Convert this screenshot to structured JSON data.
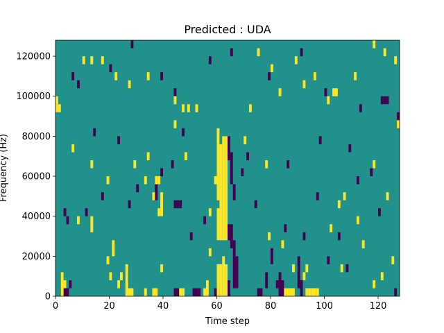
{
  "chart_data": {
    "type": "heatmap",
    "title": "Predicted : UDA",
    "xlabel": "Time step",
    "ylabel": "Frequency (Hz)",
    "xlim": [
      0,
      128
    ],
    "ylim": [
      0,
      128000
    ],
    "x_ticks": [
      0,
      20,
      40,
      60,
      80,
      100,
      120
    ],
    "y_ticks": [
      0,
      20000,
      40000,
      60000,
      80000,
      100000,
      120000
    ],
    "x_tick_labels": [
      "0",
      "20",
      "40",
      "60",
      "80",
      "100",
      "120"
    ],
    "y_tick_labels": [
      "0",
      "20000",
      "40000",
      "60000",
      "80000",
      "100000",
      "120000"
    ],
    "colormap": "viridis",
    "colors": {
      "low": "#440154",
      "mid": "#21918c",
      "high": "#fde725"
    },
    "background_value": "mid",
    "cell_width_steps": 1,
    "cell_height_hz": 4000,
    "yellow_runs": [
      [
        2,
        0,
        12000
      ],
      [
        3,
        4000,
        8000
      ],
      [
        8,
        36000,
        40000
      ],
      [
        13,
        32000,
        40000
      ],
      [
        24,
        8000,
        12000
      ],
      [
        26,
        0,
        16000
      ],
      [
        27,
        0,
        4000
      ],
      [
        28,
        0,
        4000
      ],
      [
        33,
        0,
        4000
      ],
      [
        36,
        0,
        4000
      ],
      [
        37,
        0,
        4000
      ],
      [
        46,
        0,
        4000
      ],
      [
        47,
        0,
        4000
      ],
      [
        55,
        0,
        4000
      ],
      [
        56,
        0,
        8000
      ],
      [
        34,
        68000,
        72000
      ],
      [
        38,
        40000,
        44000
      ],
      [
        39,
        44000,
        52000
      ],
      [
        60,
        0,
        16000
      ],
      [
        61,
        0,
        16000
      ],
      [
        62,
        0,
        20000
      ],
      [
        63,
        0,
        16000
      ],
      [
        60,
        28000,
        44000
      ],
      [
        61,
        28000,
        76000
      ],
      [
        62,
        28000,
        80000
      ],
      [
        63,
        28000,
        80000
      ],
      [
        60,
        48000,
        76000
      ],
      [
        59,
        56000,
        60000
      ],
      [
        60,
        76000,
        84000
      ],
      [
        93,
        0,
        4000
      ],
      [
        94,
        0,
        4000
      ],
      [
        95,
        0,
        4000
      ],
      [
        96,
        0,
        4000
      ],
      [
        97,
        0,
        4000
      ],
      [
        85,
        0,
        4000
      ],
      [
        86,
        0,
        4000
      ],
      [
        87,
        0,
        4000
      ],
      [
        88,
        0,
        4000
      ],
      [
        39,
        40000,
        48000
      ],
      [
        36,
        48000,
        52000
      ],
      [
        37,
        56000,
        60000
      ],
      [
        38,
        56000,
        60000
      ],
      [
        23,
        4000,
        8000
      ],
      [
        21,
        20000,
        28000
      ],
      [
        19,
        16000,
        20000
      ],
      [
        20,
        8000,
        12000
      ],
      [
        0,
        96000,
        100000
      ],
      [
        1,
        92000,
        96000
      ],
      [
        0,
        92000,
        96000
      ],
      [
        10,
        116000,
        120000
      ],
      [
        13,
        116000,
        120000
      ],
      [
        17,
        116000,
        120000
      ],
      [
        22,
        108000,
        112000
      ],
      [
        27,
        104000,
        108000
      ],
      [
        34,
        108000,
        112000
      ],
      [
        44,
        96000,
        100000
      ],
      [
        47,
        92000,
        96000
      ],
      [
        49,
        92000,
        96000
      ],
      [
        52,
        92000,
        96000
      ],
      [
        72,
        92000,
        96000
      ],
      [
        75,
        120000,
        124000
      ],
      [
        80,
        112000,
        116000
      ],
      [
        83,
        100000,
        104000
      ],
      [
        89,
        116000,
        120000
      ],
      [
        92,
        104000,
        108000
      ],
      [
        96,
        108000,
        112000
      ],
      [
        101,
        96000,
        100000
      ],
      [
        103,
        100000,
        104000
      ],
      [
        104,
        100000,
        104000
      ],
      [
        111,
        108000,
        112000
      ],
      [
        118,
        124000,
        128000
      ],
      [
        122,
        120000,
        124000
      ],
      [
        126,
        116000,
        120000
      ],
      [
        105,
        44000,
        48000
      ],
      [
        107,
        48000,
        52000
      ],
      [
        112,
        36000,
        40000
      ],
      [
        118,
        64000,
        68000
      ],
      [
        123,
        48000,
        52000
      ],
      [
        6,
        72000,
        76000
      ],
      [
        13,
        64000,
        68000
      ],
      [
        19,
        56000,
        60000
      ],
      [
        29,
        64000,
        68000
      ],
      [
        33,
        56000,
        60000
      ],
      [
        44,
        84000,
        88000
      ],
      [
        48,
        68000,
        72000
      ],
      [
        57,
        40000,
        44000
      ],
      [
        57,
        20000,
        24000
      ],
      [
        39,
        12000,
        16000
      ],
      [
        70,
        76000,
        80000
      ],
      [
        78,
        64000,
        68000
      ],
      [
        79,
        28000,
        32000
      ],
      [
        84,
        24000,
        28000
      ],
      [
        88,
        12000,
        16000
      ],
      [
        92,
        8000,
        12000
      ],
      [
        93,
        12000,
        16000
      ],
      [
        102,
        32000,
        36000
      ],
      [
        106,
        12000,
        16000
      ],
      [
        114,
        24000,
        28000
      ],
      [
        118,
        4000,
        8000
      ],
      [
        121,
        8000,
        12000
      ],
      [
        125,
        16000,
        20000
      ],
      [
        127,
        84000,
        88000
      ]
    ],
    "purple_runs": [
      [
        2,
        0,
        4000
      ],
      [
        3,
        0,
        4000
      ],
      [
        4,
        0,
        4000
      ],
      [
        5,
        4000,
        8000
      ],
      [
        4,
        36000,
        40000
      ],
      [
        3,
        40000,
        44000
      ],
      [
        44,
        0,
        4000
      ],
      [
        45,
        0,
        4000
      ],
      [
        51,
        0,
        4000
      ],
      [
        52,
        0,
        4000
      ],
      [
        53,
        0,
        4000
      ],
      [
        59,
        0,
        4000
      ],
      [
        64,
        0,
        8000
      ],
      [
        66,
        4000,
        20000
      ],
      [
        67,
        4000,
        20000
      ],
      [
        64,
        28000,
        36000
      ],
      [
        65,
        24000,
        36000
      ],
      [
        66,
        20000,
        28000
      ],
      [
        64,
        68000,
        80000
      ],
      [
        65,
        56000,
        72000
      ],
      [
        66,
        48000,
        56000
      ],
      [
        82,
        4000,
        8000
      ],
      [
        83,
        0,
        12000
      ],
      [
        84,
        0,
        8000
      ],
      [
        90,
        4000,
        20000
      ],
      [
        91,
        0,
        8000
      ],
      [
        75,
        0,
        4000
      ],
      [
        76,
        0,
        4000
      ],
      [
        78,
        4000,
        12000
      ],
      [
        80,
        16000,
        24000
      ],
      [
        37,
        48000,
        56000
      ],
      [
        44,
        44000,
        48000
      ],
      [
        45,
        44000,
        48000
      ],
      [
        46,
        44000,
        48000
      ],
      [
        39,
        60000,
        64000
      ],
      [
        43,
        64000,
        68000
      ],
      [
        30,
        52000,
        56000
      ],
      [
        6,
        108000,
        112000
      ],
      [
        8,
        104000,
        108000
      ],
      [
        20,
        112000,
        116000
      ],
      [
        28,
        124000,
        128000
      ],
      [
        39,
        108000,
        112000
      ],
      [
        44,
        100000,
        104000
      ],
      [
        57,
        116000,
        120000
      ],
      [
        65,
        120000,
        124000
      ],
      [
        79,
        108000,
        112000
      ],
      [
        91,
        120000,
        124000
      ],
      [
        100,
        100000,
        104000
      ],
      [
        113,
        92000,
        96000
      ],
      [
        121,
        96000,
        100000
      ],
      [
        122,
        96000,
        100000
      ],
      [
        123,
        96000,
        100000
      ],
      [
        127,
        88000,
        92000
      ],
      [
        11,
        40000,
        44000
      ],
      [
        17,
        48000,
        52000
      ],
      [
        27,
        44000,
        48000
      ],
      [
        50,
        28000,
        32000
      ],
      [
        55,
        36000,
        40000
      ],
      [
        69,
        60000,
        64000
      ],
      [
        74,
        44000,
        48000
      ],
      [
        85,
        32000,
        36000
      ],
      [
        97,
        48000,
        52000
      ],
      [
        105,
        28000,
        32000
      ],
      [
        112,
        56000,
        60000
      ],
      [
        120,
        40000,
        44000
      ],
      [
        14,
        80000,
        84000
      ],
      [
        23,
        76000,
        80000
      ],
      [
        47,
        80000,
        84000
      ],
      [
        71,
        68000,
        72000
      ],
      [
        86,
        64000,
        68000
      ],
      [
        98,
        76000,
        80000
      ],
      [
        109,
        72000,
        76000
      ],
      [
        117,
        60000,
        64000
      ],
      [
        126,
        0,
        4000
      ],
      [
        108,
        12000,
        16000
      ],
      [
        101,
        16000,
        20000
      ],
      [
        92,
        28000,
        32000
      ]
    ]
  }
}
